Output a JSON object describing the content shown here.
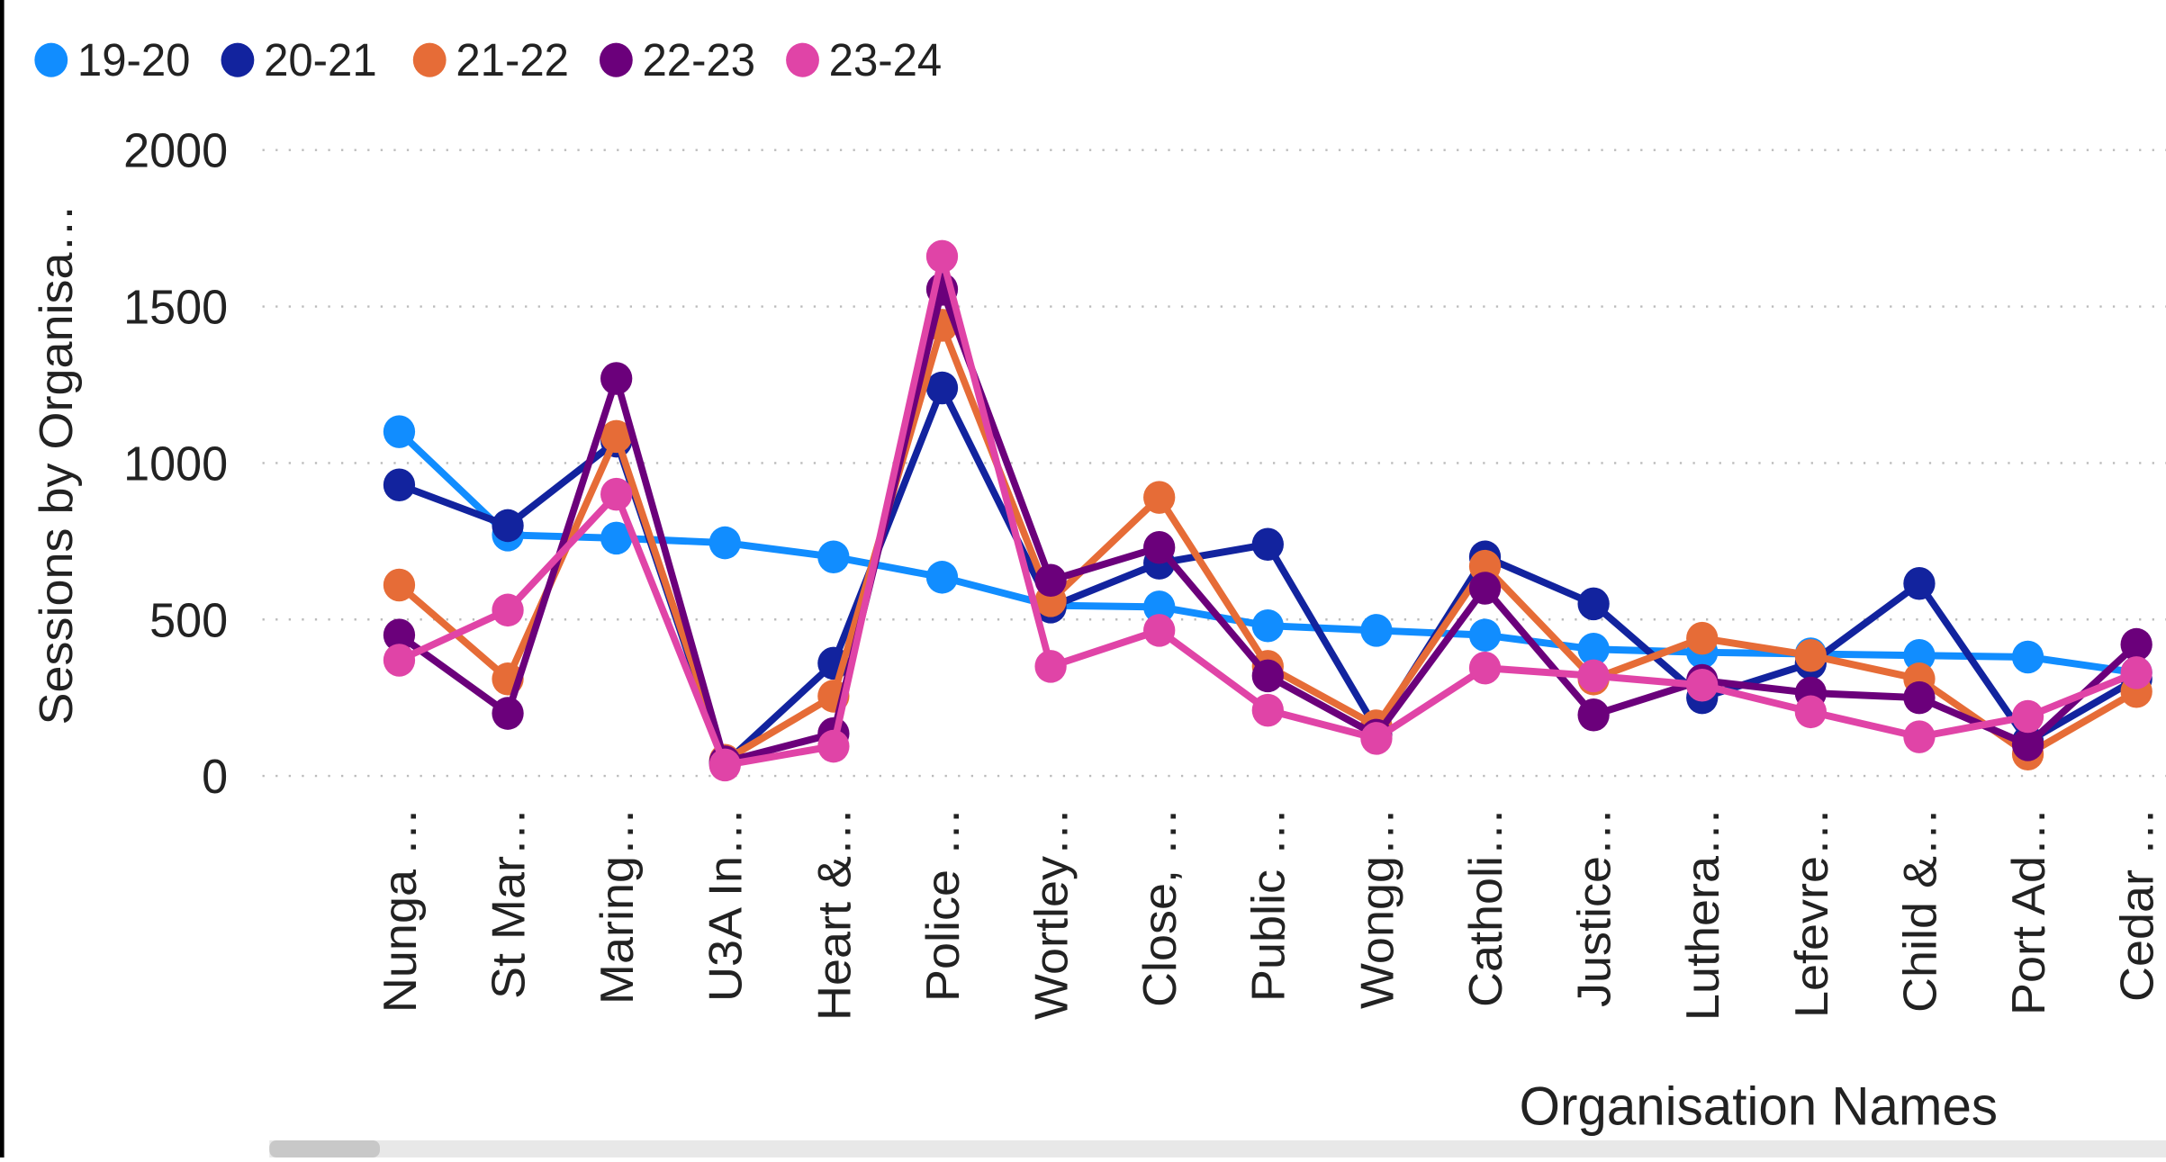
{
  "chart_data": {
    "type": "line",
    "y_label": "Sessions by Organisa…",
    "x_label": "Organisation Names",
    "categories": [
      "Nunga …",
      "St Mar…",
      "Maring…",
      "U3A In…",
      "Heart &…",
      "Police …",
      "Wortley…",
      "Close, …",
      "Public …",
      "Wongg…",
      "Catholi…",
      "Justice…",
      "Luthera…",
      "Lefevre…",
      "Child &…",
      "Port Ad…",
      "Cedar …"
    ],
    "series": [
      {
        "name": "19-20",
        "color": "#118DFF",
        "values": [
          1100,
          770,
          760,
          745,
          700,
          635,
          545,
          540,
          480,
          465,
          450,
          405,
          395,
          390,
          385,
          380,
          330
        ]
      },
      {
        "name": "20-21",
        "color": "#12239E",
        "values": [
          930,
          800,
          1070,
          40,
          360,
          1240,
          540,
          680,
          740,
          150,
          700,
          550,
          250,
          360,
          615,
          110,
          310
        ]
      },
      {
        "name": "21-22",
        "color": "#E66C37",
        "values": [
          610,
          310,
          1085,
          50,
          255,
          1440,
          560,
          890,
          350,
          160,
          670,
          310,
          440,
          385,
          310,
          70,
          270
        ]
      },
      {
        "name": "22-23",
        "color": "#6B007B",
        "values": [
          450,
          200,
          1270,
          45,
          135,
          1555,
          625,
          730,
          320,
          130,
          600,
          195,
          305,
          265,
          250,
          100,
          420
        ]
      },
      {
        "name": "23-24",
        "color": "#E044A7",
        "values": [
          370,
          530,
          900,
          35,
          95,
          1660,
          350,
          465,
          210,
          120,
          345,
          320,
          290,
          205,
          125,
          190,
          330
        ]
      }
    ],
    "ylim": [
      0,
      2000
    ],
    "yticks": [
      0,
      500,
      1000,
      1500,
      2000
    ],
    "grid": true
  }
}
